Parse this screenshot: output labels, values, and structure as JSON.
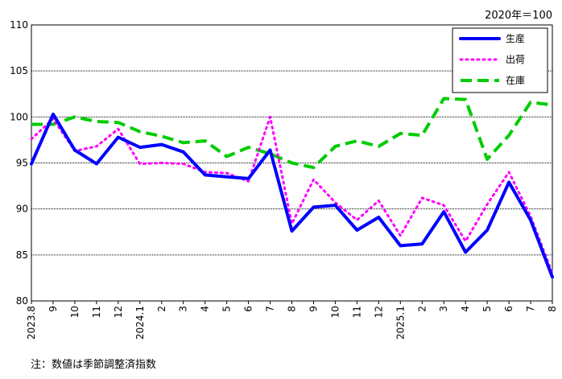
{
  "unit_note": "2020年＝100",
  "footnote": "注：数値は季節調整済指数",
  "chart_data": {
    "type": "line",
    "categories": [
      "2023.8",
      "9",
      "10",
      "11",
      "12",
      "2024.1",
      "2",
      "3",
      "4",
      "5",
      "6",
      "7",
      "8",
      "9",
      "10",
      "11",
      "12",
      "2025.1",
      "2",
      "3",
      "4",
      "5",
      "6",
      "7",
      "8"
    ],
    "ylim": [
      80,
      110
    ],
    "yticks": [
      80,
      85,
      90,
      95,
      100,
      105,
      110
    ],
    "grid": "horizontal",
    "legend_position": "top-right",
    "series": [
      {
        "name": "生産",
        "color": "#0000ff",
        "style": "solid",
        "values": [
          94.9,
          100.3,
          96.4,
          94.9,
          97.8,
          96.7,
          97.0,
          96.2,
          93.7,
          93.5,
          93.3,
          96.4,
          87.6,
          90.2,
          90.4,
          87.7,
          89.1,
          86.0,
          86.2,
          89.7,
          85.3,
          87.7,
          92.9,
          88.8,
          82.6
        ]
      },
      {
        "name": "出荷",
        "color": "#ff00ff",
        "style": "dotted",
        "values": [
          97.6,
          99.8,
          96.3,
          96.8,
          98.7,
          94.9,
          95.0,
          94.9,
          94.0,
          93.9,
          93.0,
          100.0,
          88.4,
          93.2,
          90.7,
          88.8,
          90.9,
          87.1,
          91.2,
          90.4,
          86.5,
          90.5,
          94.0,
          89.2,
          83.0
        ]
      },
      {
        "name": "在庫",
        "color": "#00cc00",
        "style": "dashed",
        "values": [
          99.2,
          99.2,
          100.0,
          99.5,
          99.4,
          98.4,
          97.9,
          97.2,
          97.4,
          95.7,
          96.7,
          96.0,
          95.0,
          94.5,
          96.8,
          97.4,
          96.8,
          98.2,
          98.0,
          102.0,
          101.9,
          95.4,
          98.0,
          101.6,
          101.3
        ]
      }
    ]
  }
}
